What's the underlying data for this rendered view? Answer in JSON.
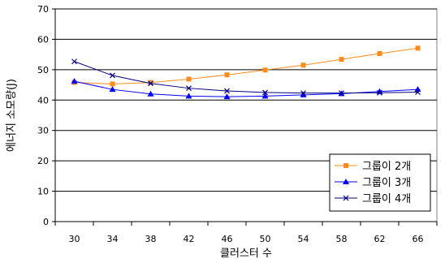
{
  "chart_data": {
    "type": "line",
    "title": "",
    "xlabel": "클러스터 수",
    "ylabel": "에너지 소모량(J)",
    "x": [
      30,
      34,
      38,
      42,
      46,
      50,
      54,
      58,
      62,
      66
    ],
    "ylim": [
      0,
      70
    ],
    "yticks": [
      0,
      10,
      20,
      30,
      40,
      50,
      60,
      70
    ],
    "grid": true,
    "legend_position": "bottom-right",
    "series": [
      {
        "name": "그룹이 2개",
        "color": "#FF8C1A",
        "marker": "square",
        "values": [
          45.8,
          45.3,
          45.8,
          46.9,
          48.3,
          49.9,
          51.5,
          53.4,
          55.3,
          57.1
        ]
      },
      {
        "name": "그룹이 3개",
        "color": "#0000FF",
        "marker": "triangle",
        "values": [
          46.2,
          43.5,
          42.0,
          41.3,
          41.1,
          41.3,
          41.7,
          42.1,
          42.8,
          43.5
        ]
      },
      {
        "name": "그룹이 4개",
        "color": "#000080",
        "marker": "x",
        "values": [
          52.7,
          48.1,
          45.5,
          43.9,
          43.0,
          42.5,
          42.3,
          42.3,
          42.4,
          42.6
        ]
      }
    ]
  }
}
